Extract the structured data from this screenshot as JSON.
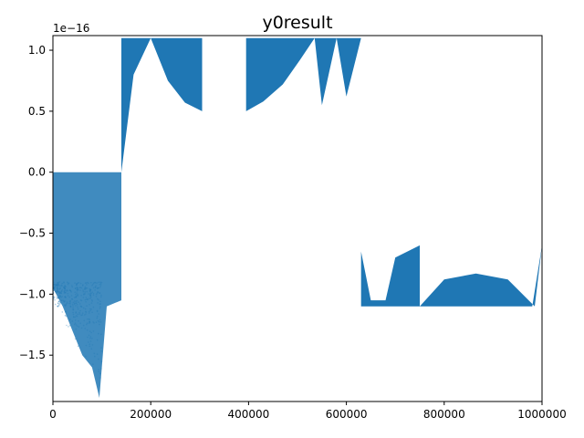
{
  "chart_data": {
    "type": "scatter",
    "title": "y0result",
    "xlabel": "",
    "ylabel": "",
    "offset_text": "1e−16",
    "xlim": [
      0,
      1000000
    ],
    "ylim": [
      -1.88,
      1.12
    ],
    "x_ticks": [
      0,
      200000,
      400000,
      600000,
      800000,
      1000000
    ],
    "x_tick_labels": [
      "0",
      "200000",
      "400000",
      "600000",
      "800000",
      "1000000"
    ],
    "y_ticks": [
      1.0,
      0.5,
      0.0,
      -0.5,
      -1.0,
      -1.5
    ],
    "y_tick_labels": [
      "1.0",
      "0.5",
      "0.0",
      "−0.5",
      "−1.0",
      "−1.5"
    ],
    "grid": false,
    "series": [
      {
        "color": "#1f77b4",
        "segments": [
          {
            "x_range": [
              0,
              140000
            ],
            "sign": "negative",
            "min": -1.85
          },
          {
            "x_range": [
              140000,
              630000
            ],
            "sign": "positive",
            "max": 1.1
          },
          {
            "x_range": [
              630000,
              1000000
            ],
            "sign": "negative",
            "min": -1.1
          }
        ],
        "envelope": [
          [
            0,
            -0.95
          ],
          [
            20000,
            -1.1
          ],
          [
            40000,
            -1.3
          ],
          [
            60000,
            -1.5
          ],
          [
            80000,
            -1.6
          ],
          [
            95000,
            -1.85
          ],
          [
            110000,
            -1.1
          ],
          [
            140000,
            -1.05
          ],
          [
            140000,
            1.1
          ],
          [
            200000,
            1.1
          ],
          [
            300000,
            1.1
          ],
          [
            400000,
            1.1
          ],
          [
            500000,
            1.1
          ],
          [
            530000,
            1.1
          ],
          [
            580000,
            1.1
          ],
          [
            630000,
            1.1
          ],
          [
            630000,
            -1.1
          ],
          [
            700000,
            -1.1
          ],
          [
            750000,
            -1.1
          ],
          [
            800000,
            -1.1
          ],
          [
            900000,
            -1.1
          ],
          [
            980000,
            -1.1
          ],
          [
            1000000,
            -0.6
          ]
        ],
        "inner_boundary": [
          [
            140000,
            0.0
          ],
          [
            165000,
            0.8
          ],
          [
            200000,
            1.1
          ],
          [
            235000,
            0.75
          ],
          [
            270000,
            0.57
          ],
          [
            305000,
            0.5
          ],
          [
            305000,
            1.1
          ],
          [
            350000,
            1.1
          ],
          [
            395000,
            1.1
          ],
          [
            395000,
            0.5
          ],
          [
            430000,
            0.58
          ],
          [
            470000,
            0.72
          ],
          [
            505000,
            0.92
          ],
          [
            535000,
            1.1
          ],
          [
            550000,
            0.55
          ],
          [
            580000,
            1.1
          ],
          [
            600000,
            0.62
          ],
          [
            630000,
            1.1
          ],
          [
            630000,
            -0.65
          ],
          [
            650000,
            -1.05
          ],
          [
            680000,
            -1.05
          ],
          [
            700000,
            -0.7
          ],
          [
            750000,
            -0.6
          ],
          [
            750000,
            -1.1
          ],
          [
            800000,
            -0.88
          ],
          [
            865000,
            -0.83
          ],
          [
            930000,
            -0.88
          ],
          [
            985000,
            -1.1
          ],
          [
            1000000,
            -0.6
          ]
        ]
      }
    ]
  }
}
